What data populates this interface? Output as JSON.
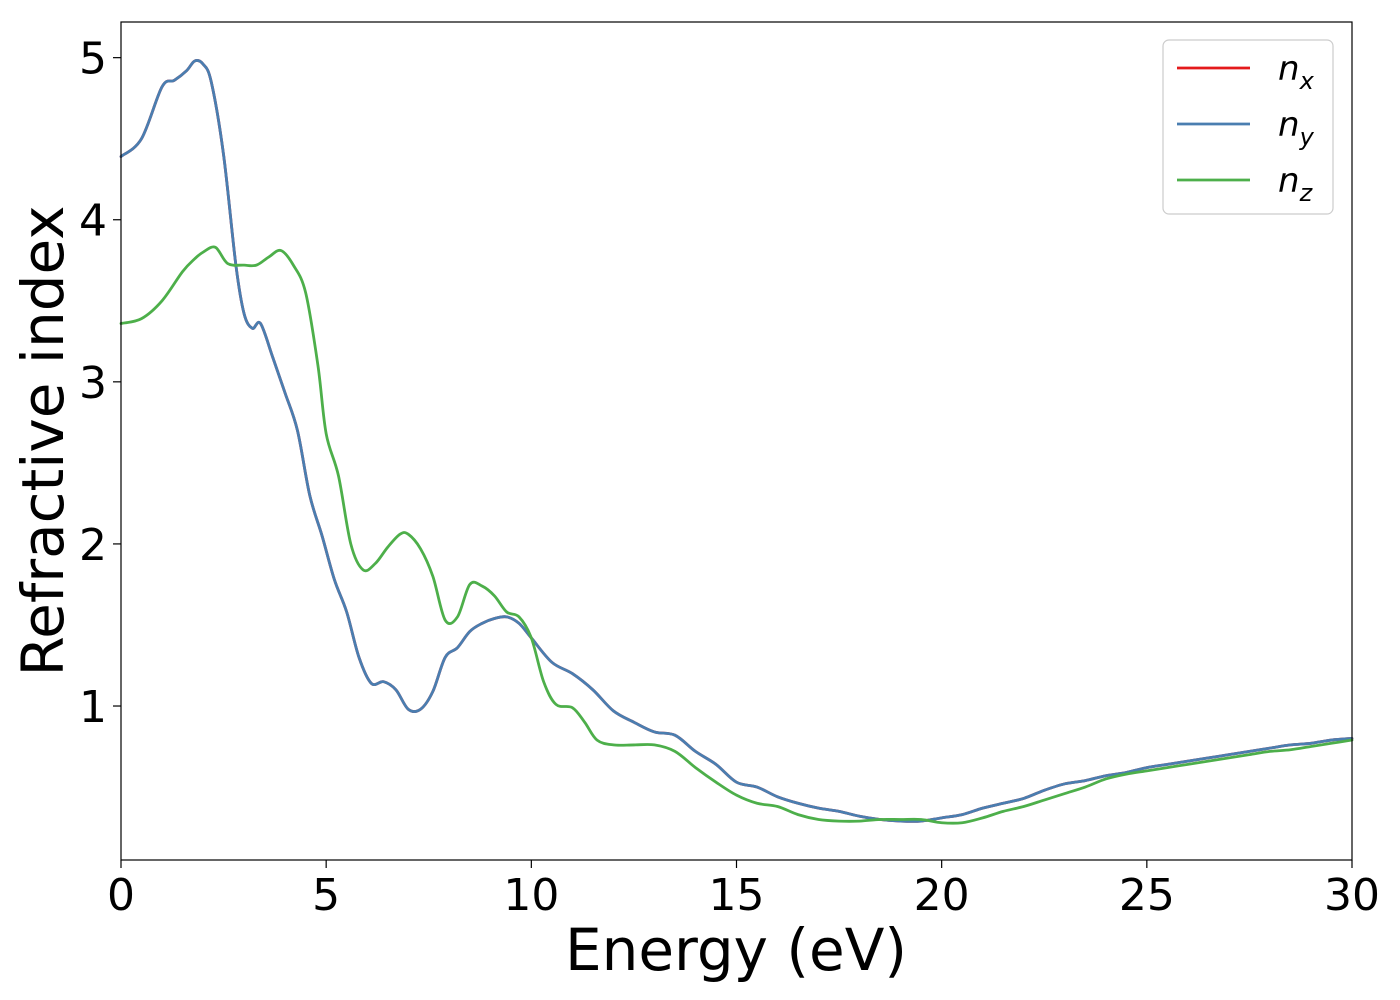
{
  "chart_data": {
    "type": "line",
    "xlabel": "Energy (eV)",
    "ylabel": "Refractive index",
    "xlim": [
      0,
      30
    ],
    "ylim": [
      0.05,
      5.22
    ],
    "xticks": [
      0,
      5,
      10,
      15,
      20,
      25,
      30
    ],
    "yticks": [
      1,
      2,
      3,
      4,
      5
    ],
    "grid": false,
    "legend_position": "top-right",
    "series": [
      {
        "name": "n_x",
        "label_main": "n",
        "label_sub": "x",
        "color": "#e41a1c",
        "x": [
          0,
          0.5,
          1.0,
          1.3,
          1.6,
          1.8,
          2.0,
          2.2,
          2.5,
          2.8,
          3.0,
          3.2,
          3.4,
          3.7,
          4.0,
          4.3,
          4.6,
          4.9,
          5.2,
          5.5,
          5.8,
          6.1,
          6.4,
          6.7,
          7.0,
          7.3,
          7.6,
          7.9,
          8.2,
          8.5,
          8.8,
          9.1,
          9.4,
          9.7,
          10.0,
          10.5,
          11.0,
          11.5,
          12.0,
          12.5,
          13.0,
          13.5,
          14.0,
          14.5,
          15.0,
          15.5,
          16.0,
          16.5,
          17.0,
          17.5,
          18.0,
          18.5,
          19.0,
          19.5,
          20.0,
          20.5,
          21.0,
          21.5,
          22.0,
          22.5,
          23.0,
          23.5,
          24.0,
          24.5,
          25.0,
          25.5,
          26.0,
          26.5,
          27.0,
          27.5,
          28.0,
          28.5,
          29.0,
          29.5,
          30.0
        ],
        "y": [
          4.39,
          4.5,
          4.82,
          4.86,
          4.92,
          4.98,
          4.96,
          4.85,
          4.4,
          3.72,
          3.42,
          3.33,
          3.36,
          3.15,
          2.93,
          2.7,
          2.3,
          2.05,
          1.78,
          1.58,
          1.3,
          1.14,
          1.15,
          1.1,
          0.98,
          0.98,
          1.09,
          1.3,
          1.36,
          1.46,
          1.51,
          1.54,
          1.55,
          1.51,
          1.42,
          1.27,
          1.2,
          1.1,
          0.97,
          0.9,
          0.84,
          0.82,
          0.72,
          0.64,
          0.53,
          0.5,
          0.44,
          0.4,
          0.37,
          0.35,
          0.32,
          0.3,
          0.29,
          0.29,
          0.31,
          0.33,
          0.37,
          0.4,
          0.43,
          0.48,
          0.52,
          0.54,
          0.57,
          0.59,
          0.62,
          0.64,
          0.66,
          0.68,
          0.7,
          0.72,
          0.74,
          0.76,
          0.77,
          0.79,
          0.8
        ]
      },
      {
        "name": "n_y",
        "label_main": "n",
        "label_sub": "y",
        "color": "#4a7eb0",
        "x": [
          0,
          0.5,
          1.0,
          1.3,
          1.6,
          1.8,
          2.0,
          2.2,
          2.5,
          2.8,
          3.0,
          3.2,
          3.4,
          3.7,
          4.0,
          4.3,
          4.6,
          4.9,
          5.2,
          5.5,
          5.8,
          6.1,
          6.4,
          6.7,
          7.0,
          7.3,
          7.6,
          7.9,
          8.2,
          8.5,
          8.8,
          9.1,
          9.4,
          9.7,
          10.0,
          10.5,
          11.0,
          11.5,
          12.0,
          12.5,
          13.0,
          13.5,
          14.0,
          14.5,
          15.0,
          15.5,
          16.0,
          16.5,
          17.0,
          17.5,
          18.0,
          18.5,
          19.0,
          19.5,
          20.0,
          20.5,
          21.0,
          21.5,
          22.0,
          22.5,
          23.0,
          23.5,
          24.0,
          24.5,
          25.0,
          25.5,
          26.0,
          26.5,
          27.0,
          27.5,
          28.0,
          28.5,
          29.0,
          29.5,
          30.0
        ],
        "y": [
          4.39,
          4.5,
          4.82,
          4.86,
          4.92,
          4.98,
          4.96,
          4.85,
          4.4,
          3.72,
          3.42,
          3.33,
          3.36,
          3.15,
          2.93,
          2.7,
          2.3,
          2.05,
          1.78,
          1.58,
          1.3,
          1.14,
          1.15,
          1.1,
          0.98,
          0.98,
          1.09,
          1.3,
          1.36,
          1.46,
          1.51,
          1.54,
          1.55,
          1.51,
          1.42,
          1.27,
          1.2,
          1.1,
          0.97,
          0.9,
          0.84,
          0.82,
          0.72,
          0.64,
          0.53,
          0.5,
          0.44,
          0.4,
          0.37,
          0.35,
          0.32,
          0.3,
          0.29,
          0.29,
          0.31,
          0.33,
          0.37,
          0.4,
          0.43,
          0.48,
          0.52,
          0.54,
          0.57,
          0.59,
          0.62,
          0.64,
          0.66,
          0.68,
          0.7,
          0.72,
          0.74,
          0.76,
          0.77,
          0.79,
          0.8
        ]
      },
      {
        "name": "n_z",
        "label_main": "n",
        "label_sub": "z",
        "color": "#4daf4a",
        "x": [
          0,
          0.5,
          1.0,
          1.5,
          1.8,
          2.0,
          2.3,
          2.6,
          3.0,
          3.3,
          3.6,
          3.9,
          4.2,
          4.5,
          4.8,
          5.0,
          5.3,
          5.6,
          5.9,
          6.2,
          6.5,
          6.8,
          7.0,
          7.3,
          7.6,
          7.9,
          8.2,
          8.5,
          8.8,
          9.1,
          9.4,
          9.7,
          10.0,
          10.3,
          10.6,
          11.0,
          11.3,
          11.6,
          12.0,
          12.5,
          13.0,
          13.5,
          14.0,
          14.5,
          15.0,
          15.5,
          16.0,
          16.5,
          17.0,
          17.5,
          18.0,
          18.5,
          19.0,
          19.5,
          20.0,
          20.5,
          21.0,
          21.5,
          22.0,
          22.5,
          23.0,
          23.5,
          24.0,
          24.5,
          25.0,
          25.5,
          26.0,
          26.5,
          27.0,
          27.5,
          28.0,
          28.5,
          29.0,
          29.5,
          30.0
        ],
        "y": [
          3.36,
          3.39,
          3.5,
          3.68,
          3.76,
          3.8,
          3.83,
          3.73,
          3.72,
          3.72,
          3.77,
          3.81,
          3.72,
          3.55,
          3.1,
          2.68,
          2.42,
          2.0,
          1.84,
          1.88,
          1.98,
          2.06,
          2.06,
          1.97,
          1.8,
          1.53,
          1.55,
          1.75,
          1.74,
          1.68,
          1.58,
          1.55,
          1.42,
          1.15,
          1.01,
          0.99,
          0.9,
          0.79,
          0.76,
          0.76,
          0.76,
          0.72,
          0.62,
          0.53,
          0.45,
          0.4,
          0.38,
          0.33,
          0.3,
          0.29,
          0.29,
          0.3,
          0.3,
          0.3,
          0.28,
          0.28,
          0.31,
          0.35,
          0.38,
          0.42,
          0.46,
          0.5,
          0.55,
          0.58,
          0.6,
          0.62,
          0.64,
          0.66,
          0.68,
          0.7,
          0.72,
          0.73,
          0.75,
          0.77,
          0.79
        ]
      }
    ]
  }
}
